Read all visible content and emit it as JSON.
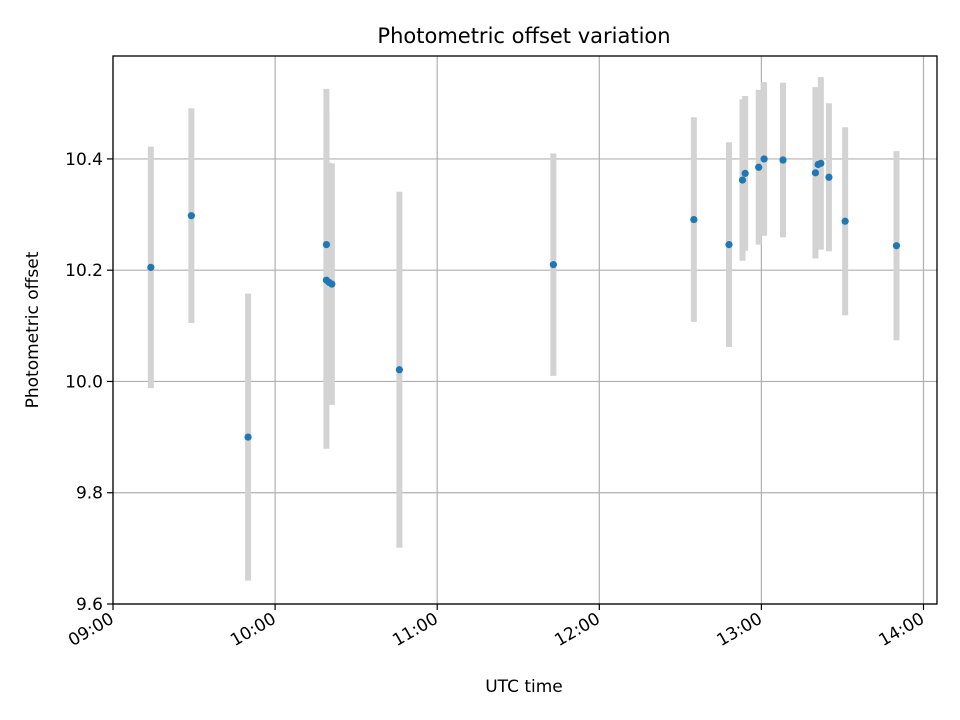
{
  "chart_data": {
    "type": "scatter",
    "title": "Photometric offset variation",
    "xlabel": "UTC time",
    "ylabel": "Photometric offset",
    "x_ticks": [
      "09:00",
      "10:00",
      "11:00",
      "12:00",
      "13:00",
      "14:00"
    ],
    "y_ticks": [
      "9.6",
      "9.8",
      "10.0",
      "10.2",
      "10.4"
    ],
    "xlim": [
      "09:00",
      "14:05"
    ],
    "ylim": [
      9.6,
      10.585
    ],
    "grid": true,
    "marker_color": "#1f77b4",
    "errorbar_color": "#d3d3d3",
    "series": [
      {
        "points": [
          {
            "x": "09:14",
            "y": 10.205,
            "yerr": 0.217
          },
          {
            "x": "09:29",
            "y": 10.298,
            "yerr": 0.193
          },
          {
            "x": "09:50",
            "y": 9.9,
            "yerr": 0.258
          },
          {
            "x": "10:19",
            "y": 10.246,
            "yerr": 0.28
          },
          {
            "x": "10:19",
            "y": 10.182,
            "yerr": 0.303
          },
          {
            "x": "10:20",
            "y": 10.178,
            "yerr": 0.215
          },
          {
            "x": "10:21",
            "y": 10.175,
            "yerr": 0.217
          },
          {
            "x": "10:46",
            "y": 10.021,
            "yerr": 0.32
          },
          {
            "x": "11:43",
            "y": 10.21,
            "yerr": 0.2
          },
          {
            "x": "12:35",
            "y": 10.291,
            "yerr": 0.184
          },
          {
            "x": "12:48",
            "y": 10.246,
            "yerr": 0.184
          },
          {
            "x": "12:53",
            "y": 10.362,
            "yerr": 0.145
          },
          {
            "x": "12:54",
            "y": 10.374,
            "yerr": 0.139
          },
          {
            "x": "12:59",
            "y": 10.385,
            "yerr": 0.139
          },
          {
            "x": "13:01",
            "y": 10.4,
            "yerr": 0.138
          },
          {
            "x": "13:08",
            "y": 10.398,
            "yerr": 0.139
          },
          {
            "x": "13:20",
            "y": 10.375,
            "yerr": 0.154
          },
          {
            "x": "13:21",
            "y": 10.39,
            "yerr": 0.137
          },
          {
            "x": "13:22",
            "y": 10.392,
            "yerr": 0.155
          },
          {
            "x": "13:25",
            "y": 10.367,
            "yerr": 0.133
          },
          {
            "x": "13:31",
            "y": 10.288,
            "yerr": 0.169
          },
          {
            "x": "13:50",
            "y": 10.244,
            "yerr": 0.17
          }
        ]
      }
    ]
  }
}
